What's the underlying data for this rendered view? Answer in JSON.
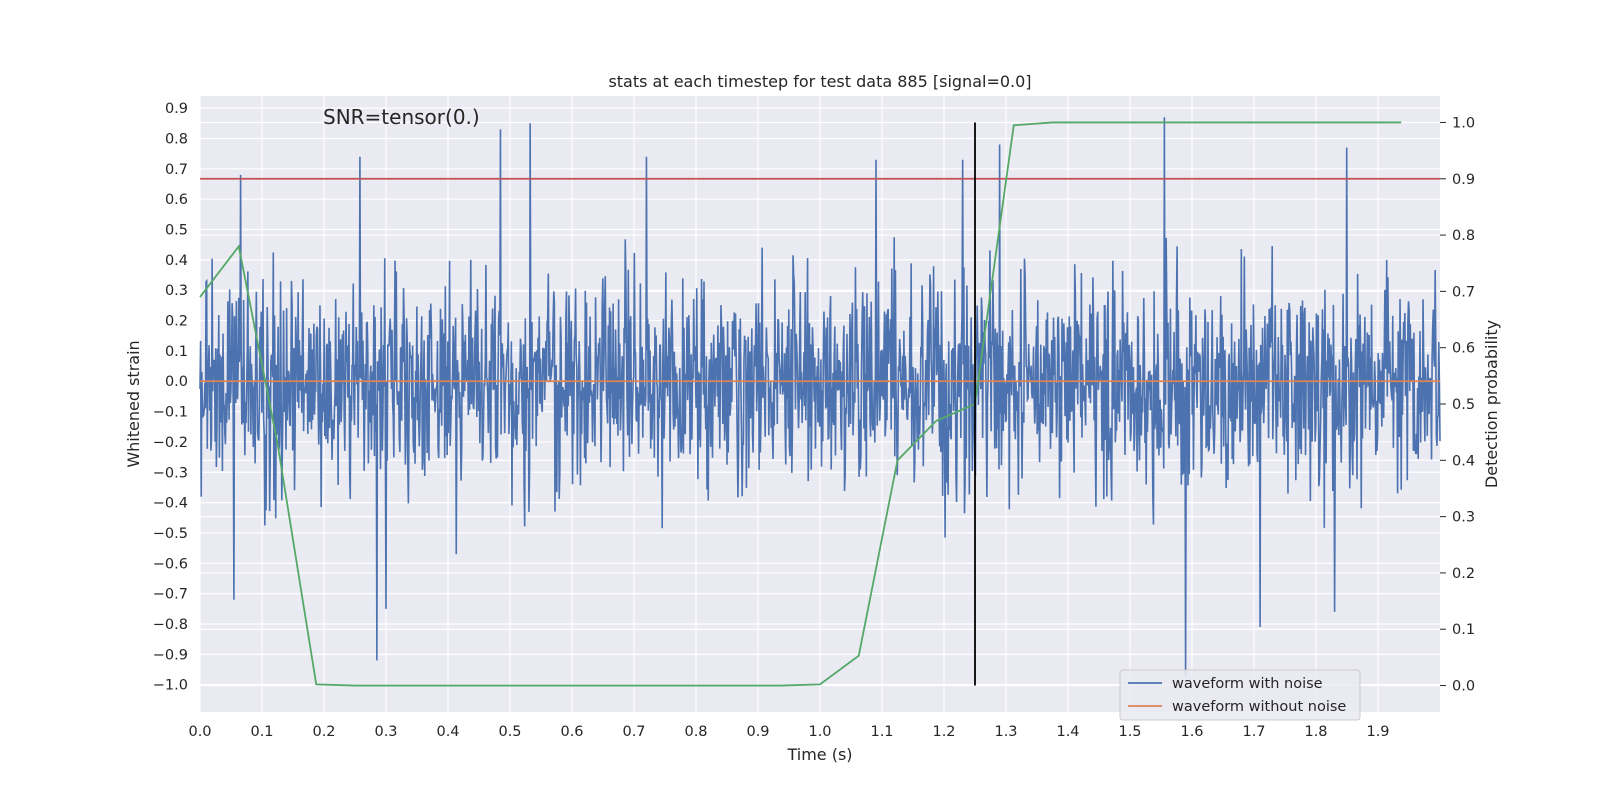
{
  "chart_data": {
    "type": "line",
    "title": "stats at each timestep for test data 885 [signal=0.0]",
    "xlabel": "Time (s)",
    "ylabel": "Whitened strain",
    "y2label": "Detection probability",
    "annotation": "SNR=tensor(0.)",
    "xlim": [
      0.0,
      2.0
    ],
    "ylim": [
      -1.09,
      0.94
    ],
    "y2lim": [
      -0.047,
      1.047
    ],
    "xticks": [
      0.0,
      0.1,
      0.2,
      0.3,
      0.4,
      0.5,
      0.6,
      0.7,
      0.8,
      0.9,
      1.0,
      1.1,
      1.2,
      1.3,
      1.4,
      1.5,
      1.6,
      1.7,
      1.8,
      1.9
    ],
    "xtick_labels": [
      "0.0",
      "0.1",
      "0.2",
      "0.3",
      "0.4",
      "0.5",
      "0.6",
      "0.7",
      "0.8",
      "0.9",
      "1.0",
      "1.1",
      "1.2",
      "1.3",
      "1.4",
      "1.5",
      "1.6",
      "1.7",
      "1.8",
      "1.9"
    ],
    "yticks": [
      -1.0,
      -0.9,
      -0.8,
      -0.7,
      -0.6,
      -0.5,
      -0.4,
      -0.3,
      -0.2,
      -0.1,
      0.0,
      0.1,
      0.2,
      0.3,
      0.4,
      0.5,
      0.6,
      0.7,
      0.8,
      0.9
    ],
    "ytick_labels": [
      "−1.0",
      "−0.9",
      "−0.8",
      "−0.7",
      "−0.6",
      "−0.5",
      "−0.4",
      "−0.3",
      "−0.2",
      "−0.1",
      "0.0",
      "0.1",
      "0.2",
      "0.3",
      "0.4",
      "0.5",
      "0.6",
      "0.7",
      "0.8",
      "0.9"
    ],
    "y2ticks": [
      0.0,
      0.1,
      0.2,
      0.3,
      0.4,
      0.5,
      0.6,
      0.7,
      0.8,
      0.9,
      1.0
    ],
    "y2tick_labels": [
      "0.0",
      "0.1",
      "0.2",
      "0.3",
      "0.4",
      "0.5",
      "0.6",
      "0.7",
      "0.8",
      "0.9",
      "1.0"
    ],
    "grid": true,
    "legend_position": "lower-right",
    "threshold_probability": 0.9,
    "vertical_marker_x": 1.25,
    "series": [
      {
        "name": "waveform with noise",
        "color": "#4c72b0",
        "axis": "left",
        "style": "noise",
        "n_points": 2048,
        "range_approx": [
          -0.97,
          0.87
        ],
        "peaks": [
          {
            "x": 0.065,
            "y": 0.68
          },
          {
            "x": 0.258,
            "y": 0.74
          },
          {
            "x": 0.485,
            "y": 0.83
          },
          {
            "x": 0.532,
            "y": 0.85
          },
          {
            "x": 1.555,
            "y": 0.87
          },
          {
            "x": 1.59,
            "y": -0.97
          },
          {
            "x": 0.285,
            "y": -0.92
          },
          {
            "x": 1.29,
            "y": 0.78
          },
          {
            "x": 0.055,
            "y": -0.72
          },
          {
            "x": 0.72,
            "y": 0.74
          },
          {
            "x": 1.85,
            "y": 0.77
          },
          {
            "x": 1.71,
            "y": -0.81
          },
          {
            "x": 0.3,
            "y": -0.75
          },
          {
            "x": 1.83,
            "y": -0.76
          },
          {
            "x": 1.09,
            "y": 0.73
          },
          {
            "x": 1.23,
            "y": 0.73
          }
        ]
      },
      {
        "name": "waveform without noise",
        "color": "#dd8452",
        "axis": "left",
        "x": [
          0.0,
          2.0
        ],
        "y": [
          0.0,
          0.0
        ]
      },
      {
        "name": "",
        "color": "#55a868",
        "axis": "right",
        "x": [
          0.0,
          0.0625,
          0.125,
          0.1875,
          0.25,
          0.3125,
          0.375,
          0.4375,
          0.5,
          0.5625,
          0.625,
          0.6875,
          0.75,
          0.8125,
          0.875,
          0.9375,
          1.0,
          1.0625,
          1.125,
          1.1875,
          1.25,
          1.3125,
          1.375,
          1.4375,
          1.5,
          1.5625,
          1.625,
          1.6875,
          1.75,
          1.8125,
          1.875,
          1.9375
        ],
        "y": [
          0.69,
          0.78,
          0.43,
          0.002,
          0.0,
          0.0,
          0.0,
          0.0,
          0.0,
          0.0,
          0.0,
          0.0,
          0.0,
          0.0,
          0.0,
          0.0,
          0.002,
          0.053,
          0.4,
          0.47,
          0.5,
          0.995,
          1.0,
          1.0,
          1.0,
          1.0,
          1.0,
          1.0,
          1.0,
          1.0,
          1.0,
          1.0
        ]
      },
      {
        "name": "",
        "color": "#c44e52",
        "axis": "right",
        "x": [
          0.0,
          2.0
        ],
        "y": [
          0.9,
          0.9
        ]
      }
    ]
  }
}
